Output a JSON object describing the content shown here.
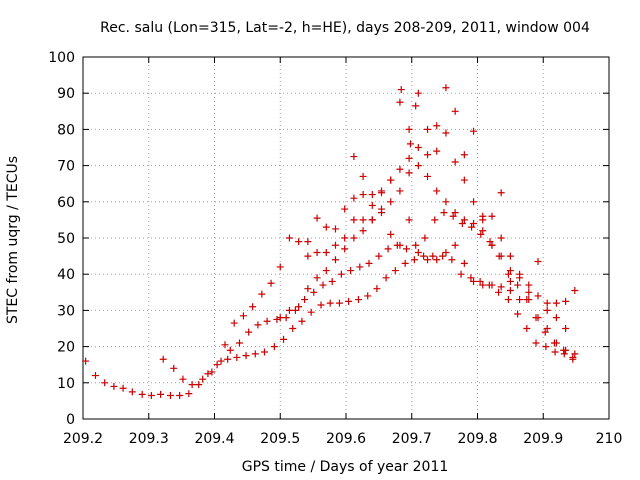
{
  "chart_data": {
    "type": "scatter",
    "title": "Rec. salu (Lon=315, Lat=-2, h=HE), days 208-209, 2011, window 004",
    "xlabel": "GPS time / Days of year 2011",
    "ylabel": "STEC from uqrg / TECUs",
    "xlim": [
      209.2,
      210
    ],
    "ylim": [
      0,
      100
    ],
    "xticks": [
      "209.2",
      "209.3",
      "209.4",
      "209.5",
      "209.6",
      "209.7",
      "209.8",
      "209.9",
      "210"
    ],
    "yticks": [
      "0",
      "10",
      "20",
      "30",
      "40",
      "50",
      "60",
      "70",
      "80",
      "90",
      "100"
    ],
    "grid": true,
    "legend": "none",
    "marker": "plus",
    "color": "#cc0000",
    "series": [
      {
        "points": [
          [
            209.204,
            16
          ],
          [
            209.219,
            12
          ],
          [
            209.233,
            10
          ],
          [
            209.247,
            9
          ],
          [
            209.261,
            8.5
          ],
          [
            209.275,
            7.5
          ],
          [
            209.29,
            6.8
          ],
          [
            209.304,
            6.5
          ],
          [
            209.318,
            6.8
          ],
          [
            209.333,
            6.5
          ],
          [
            209.347,
            6.5
          ],
          [
            209.361,
            7
          ],
          [
            209.376,
            9.5
          ],
          [
            209.39,
            12.5
          ],
          [
            209.404,
            15
          ],
          [
            209.42,
            16.5
          ],
          [
            209.434,
            17
          ],
          [
            209.448,
            17.5
          ],
          [
            209.462,
            18
          ],
          [
            209.476,
            18.5
          ],
          [
            209.491,
            20
          ],
          [
            209.505,
            22
          ],
          [
            209.519,
            25
          ],
          [
            209.533,
            27
          ],
          [
            209.547,
            29.5
          ],
          [
            209.562,
            31.5
          ],
          [
            209.576,
            32
          ],
          [
            209.59,
            32
          ],
          [
            209.604,
            32.5
          ],
          [
            209.619,
            33
          ],
          [
            209.633,
            34
          ],
          [
            209.647,
            36
          ],
          [
            209.661,
            39
          ],
          [
            209.675,
            41
          ],
          [
            209.69,
            43
          ],
          [
            209.704,
            44
          ],
          [
            209.718,
            45
          ],
          [
            209.732,
            45
          ],
          [
            209.747,
            45
          ],
          [
            209.761,
            44
          ],
          [
            209.775,
            40
          ],
          [
            209.79,
            39
          ],
          [
            209.804,
            38
          ],
          [
            209.818,
            37
          ],
          [
            209.832,
            35
          ],
          [
            209.847,
            33
          ],
          [
            209.861,
            29
          ],
          [
            209.875,
            25
          ],
          [
            209.889,
            21
          ],
          [
            209.904,
            20
          ],
          [
            209.918,
            18.5
          ],
          [
            209.932,
            18
          ],
          [
            209.945,
            17
          ],
          [
            209.322,
            16.5
          ],
          [
            209.338,
            14
          ],
          [
            209.352,
            11
          ],
          [
            209.366,
            9.5
          ],
          [
            209.382,
            11
          ],
          [
            209.396,
            13
          ],
          [
            209.41,
            16
          ],
          [
            209.424,
            19
          ],
          [
            209.438,
            21
          ],
          [
            209.452,
            24
          ],
          [
            209.466,
            26
          ],
          [
            209.48,
            27
          ],
          [
            209.495,
            27.5
          ],
          [
            209.509,
            28
          ],
          [
            209.523,
            30
          ],
          [
            209.537,
            33
          ],
          [
            209.551,
            35
          ],
          [
            209.565,
            37
          ],
          [
            209.579,
            38
          ],
          [
            209.593,
            40
          ],
          [
            209.607,
            41
          ],
          [
            209.621,
            42
          ],
          [
            209.635,
            43
          ],
          [
            209.65,
            45
          ],
          [
            209.664,
            47
          ],
          [
            209.678,
            48
          ],
          [
            209.692,
            47
          ],
          [
            209.706,
            48
          ],
          [
            209.72,
            50
          ],
          [
            209.735,
            55
          ],
          [
            209.749,
            57
          ],
          [
            209.763,
            56
          ],
          [
            209.777,
            54
          ],
          [
            209.791,
            53
          ],
          [
            209.805,
            51
          ],
          [
            209.819,
            49
          ],
          [
            209.833,
            45
          ],
          [
            209.847,
            40
          ],
          [
            209.861,
            37
          ],
          [
            209.875,
            33
          ],
          [
            209.889,
            28
          ],
          [
            209.903,
            24
          ],
          [
            209.917,
            21
          ],
          [
            209.931,
            19
          ],
          [
            209.945,
            16.5
          ],
          [
            209.416,
            20.5
          ],
          [
            209.43,
            26.5
          ],
          [
            209.444,
            28.5
          ],
          [
            209.458,
            31
          ],
          [
            209.472,
            34.5
          ],
          [
            209.486,
            37.5
          ],
          [
            209.5,
            42
          ],
          [
            209.514,
            50
          ],
          [
            209.528,
            49
          ],
          [
            209.542,
            49
          ],
          [
            209.556,
            55.5
          ],
          [
            209.57,
            53
          ],
          [
            209.584,
            52.5
          ],
          [
            209.598,
            58
          ],
          [
            209.612,
            61
          ],
          [
            209.626,
            62
          ],
          [
            209.64,
            62
          ],
          [
            209.654,
            63
          ],
          [
            209.668,
            66
          ],
          [
            209.682,
            69
          ],
          [
            209.696,
            80
          ],
          [
            209.71,
            90
          ],
          [
            209.724,
            80
          ],
          [
            209.738,
            81
          ],
          [
            209.752,
            79
          ],
          [
            209.766,
            71
          ],
          [
            209.78,
            66
          ],
          [
            209.794,
            60
          ],
          [
            209.808,
            56
          ],
          [
            209.822,
            56
          ],
          [
            209.836,
            50
          ],
          [
            209.85,
            45
          ],
          [
            209.864,
            40
          ],
          [
            209.878,
            35
          ],
          [
            209.892,
            28
          ],
          [
            209.906,
            25
          ],
          [
            209.92,
            21
          ],
          [
            209.934,
            19
          ],
          [
            209.948,
            18
          ],
          [
            209.5,
            28
          ],
          [
            209.514,
            30
          ],
          [
            209.528,
            31
          ],
          [
            209.542,
            36
          ],
          [
            209.556,
            39
          ],
          [
            209.57,
            41
          ],
          [
            209.584,
            44
          ],
          [
            209.598,
            47
          ],
          [
            209.612,
            50
          ],
          [
            209.626,
            52
          ],
          [
            209.64,
            55
          ],
          [
            209.654,
            57
          ],
          [
            209.668,
            60
          ],
          [
            209.682,
            63
          ],
          [
            209.696,
            68
          ],
          [
            209.71,
            70
          ],
          [
            209.724,
            67
          ],
          [
            209.738,
            63
          ],
          [
            209.752,
            60
          ],
          [
            209.766,
            57
          ],
          [
            209.78,
            55
          ],
          [
            209.794,
            54
          ],
          [
            209.808,
            52
          ],
          [
            209.822,
            48
          ],
          [
            209.836,
            45
          ],
          [
            209.85,
            41
          ],
          [
            209.864,
            39
          ],
          [
            209.878,
            37
          ],
          [
            209.892,
            34
          ],
          [
            209.906,
            30
          ],
          [
            209.92,
            28
          ],
          [
            209.934,
            25
          ],
          [
            209.612,
            72.5
          ],
          [
            209.626,
            67
          ],
          [
            209.64,
            59
          ],
          [
            209.654,
            62.5
          ],
          [
            209.668,
            66
          ],
          [
            209.682,
            87.5
          ],
          [
            209.684,
            91
          ],
          [
            209.696,
            72
          ],
          [
            209.698,
            76
          ],
          [
            209.706,
            86.5
          ],
          [
            209.71,
            75
          ],
          [
            209.724,
            73
          ],
          [
            209.738,
            74
          ],
          [
            209.752,
            91.5
          ],
          [
            209.766,
            85
          ],
          [
            209.78,
            73
          ],
          [
            209.794,
            79.5
          ],
          [
            209.808,
            55
          ],
          [
            209.822,
            48
          ],
          [
            209.836,
            62.5
          ],
          [
            209.85,
            38
          ],
          [
            209.864,
            33
          ],
          [
            209.878,
            33
          ],
          [
            209.892,
            43.5
          ],
          [
            209.906,
            32
          ],
          [
            209.92,
            32
          ],
          [
            209.934,
            32.5
          ],
          [
            209.948,
            35.5
          ],
          [
            209.542,
            45
          ],
          [
            209.556,
            46
          ],
          [
            209.57,
            46
          ],
          [
            209.584,
            48
          ],
          [
            209.598,
            50
          ],
          [
            209.612,
            55
          ],
          [
            209.626,
            55
          ],
          [
            209.64,
            55
          ],
          [
            209.654,
            58
          ],
          [
            209.668,
            51
          ],
          [
            209.682,
            48
          ],
          [
            209.696,
            55
          ],
          [
            209.71,
            46
          ],
          [
            209.724,
            44
          ],
          [
            209.738,
            44
          ],
          [
            209.752,
            46
          ],
          [
            209.766,
            48
          ],
          [
            209.78,
            43
          ],
          [
            209.794,
            38
          ],
          [
            209.808,
            37
          ],
          [
            209.822,
            37
          ],
          [
            209.836,
            36.5
          ],
          [
            209.85,
            35.5
          ]
        ]
      }
    ]
  }
}
